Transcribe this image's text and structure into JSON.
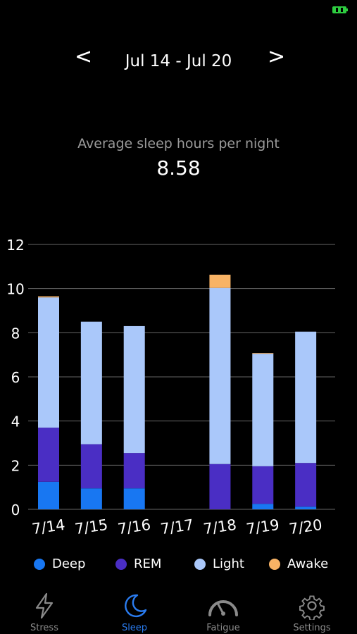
{
  "header": {
    "prev_label": "<",
    "next_label": ">",
    "range": "Jul 14 - Jul 20"
  },
  "summary": {
    "label": "Average sleep hours per night",
    "value": "8.58"
  },
  "colors": {
    "deep": "#1877f2",
    "rem": "#4a2ec4",
    "light": "#aac8fa",
    "awake": "#f8b365",
    "grid": "#666666",
    "active_tab": "#2a7cf0",
    "inactive_tab": "#8a8a8a"
  },
  "chart_data": {
    "type": "bar",
    "stacked": true,
    "categories": [
      "7/14",
      "7/15",
      "7/16",
      "7/17",
      "7/18",
      "7/19",
      "7/20"
    ],
    "series": [
      {
        "name": "Deep",
        "values": [
          1.25,
          0.95,
          0.95,
          0,
          0,
          0.25,
          0.12
        ]
      },
      {
        "name": "REM",
        "values": [
          2.45,
          2.0,
          1.6,
          0,
          2.05,
          1.7,
          1.98
        ]
      },
      {
        "name": "Light",
        "values": [
          5.9,
          5.55,
          5.75,
          0,
          7.98,
          5.1,
          5.95
        ]
      },
      {
        "name": "Awake",
        "values": [
          0.05,
          0,
          0,
          0,
          0.6,
          0.03,
          0
        ]
      }
    ],
    "y_ticks": [
      "0",
      "2",
      "4",
      "6",
      "8",
      "10",
      "12"
    ],
    "ylim": [
      0,
      12
    ],
    "grid": true,
    "legend_position": "bottom"
  },
  "legend": [
    {
      "label": "Deep",
      "color": "#1877f2"
    },
    {
      "label": "REM",
      "color": "#4a2ec4"
    },
    {
      "label": "Light",
      "color": "#aac8fa"
    },
    {
      "label": "Awake",
      "color": "#f8b365"
    }
  ],
  "tabs": [
    {
      "label": "Stress",
      "icon": "lightning-icon",
      "active": false
    },
    {
      "label": "Sleep",
      "icon": "moon-icon",
      "active": true
    },
    {
      "label": "Fatigue",
      "icon": "gauge-icon",
      "active": false
    },
    {
      "label": "Settings",
      "icon": "gear-icon",
      "active": false
    }
  ],
  "status": {
    "icon": "battery-icon",
    "color": "#2ecc40"
  }
}
